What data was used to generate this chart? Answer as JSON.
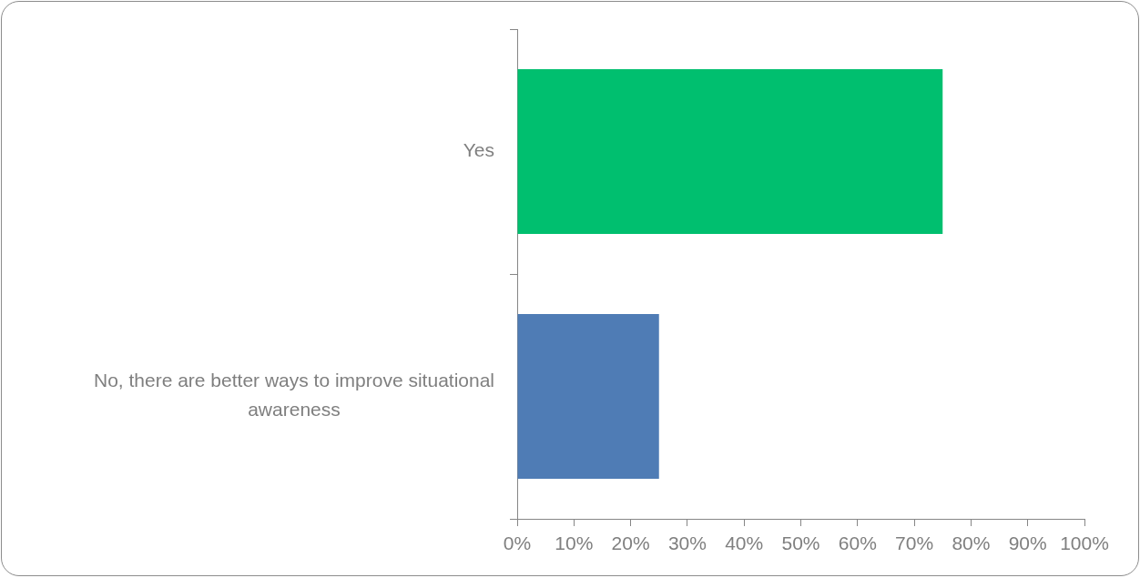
{
  "chart_data": {
    "type": "bar",
    "orientation": "horizontal",
    "categories": [
      "Yes",
      "No, there are better ways to improve situational awareness"
    ],
    "values": [
      75,
      25
    ],
    "colors": [
      "#00bf6f",
      "#4f7cb5"
    ],
    "xlim": [
      0,
      100
    ],
    "xticks": [
      {
        "value": 0,
        "label": "0%"
      },
      {
        "value": 10,
        "label": "10%"
      },
      {
        "value": 20,
        "label": "20%"
      },
      {
        "value": 30,
        "label": "30%"
      },
      {
        "value": 40,
        "label": "40%"
      },
      {
        "value": 50,
        "label": "50%"
      },
      {
        "value": 60,
        "label": "60%"
      },
      {
        "value": 70,
        "label": "70%"
      },
      {
        "value": 80,
        "label": "80%"
      },
      {
        "value": 90,
        "label": "90%"
      },
      {
        "value": 100,
        "label": "100%"
      }
    ],
    "grid": false
  }
}
